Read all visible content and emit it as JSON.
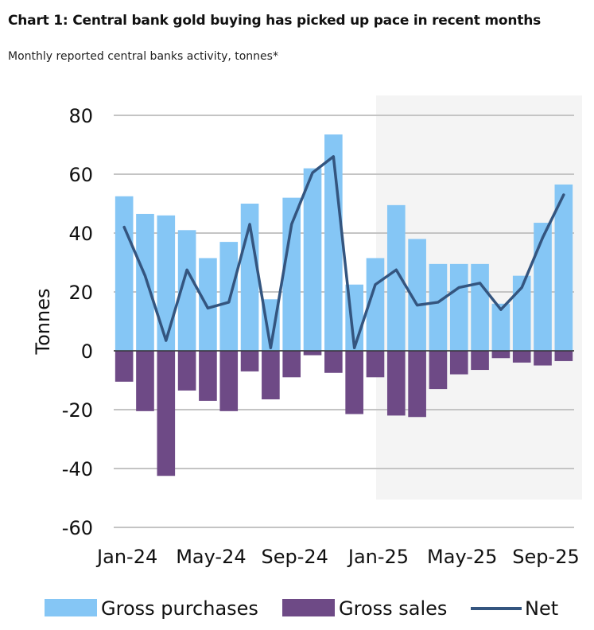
{
  "header": {
    "title": "Chart 1: Central bank gold buying has picked up pace in recent months",
    "subtitle": "Monthly reported central banks activity, tonnes*"
  },
  "colors": {
    "purchases": "#85c6f5",
    "sales": "#6e4a86",
    "net": "#34557f",
    "grid": "#c4c4c4",
    "plot_bg": "#f4f4f4"
  },
  "chart_data": {
    "type": "bar",
    "ylabel": "Tonnes",
    "ylim": [
      -60,
      80
    ],
    "yticks": [
      80,
      60,
      40,
      20,
      0,
      -20,
      -40,
      -60
    ],
    "grid": true,
    "legend_position": "bottom",
    "categories": [
      "Jan-24",
      "Feb-24",
      "Mar-24",
      "Apr-24",
      "May-24",
      "Jun-24",
      "Jul-24",
      "Aug-24",
      "Sep-24",
      "Oct-24",
      "Nov-24",
      "Dec-24",
      "Jan-25",
      "Feb-25",
      "Mar-25",
      "Apr-25",
      "May-25",
      "Jun-25",
      "Jul-25",
      "Aug-25",
      "Sep-25",
      "Oct-25"
    ],
    "xtick_labels": [
      "Jan-24",
      "May-24",
      "Sep-24",
      "Jan-25",
      "May-25",
      "Sep-25"
    ],
    "series": [
      {
        "name": "Gross purchases",
        "kind": "bar",
        "values": [
          52.5,
          46.5,
          46,
          41,
          31.5,
          37,
          50,
          17.5,
          52,
          62,
          73.5,
          22.5,
          31.5,
          49.5,
          38,
          29.5,
          29.5,
          29.5,
          16,
          25.5,
          43.5,
          56.5
        ]
      },
      {
        "name": "Gross sales",
        "kind": "bar",
        "values": [
          -10.5,
          -20.5,
          -42.5,
          -13.5,
          -17,
          -20.5,
          -7,
          -16.5,
          -9,
          -1.5,
          -7.5,
          -21.5,
          -9,
          -22,
          -22.5,
          -13,
          -8,
          -6.5,
          -2.5,
          -4,
          -5,
          -3.5
        ]
      },
      {
        "name": "Net",
        "kind": "line",
        "values": [
          42,
          25.5,
          3.5,
          27.5,
          14.5,
          16.5,
          43,
          1,
          43,
          60.5,
          66,
          1,
          22.5,
          27.5,
          15.5,
          16.5,
          21.5,
          23,
          14,
          21.5,
          38.5,
          53
        ]
      }
    ]
  }
}
